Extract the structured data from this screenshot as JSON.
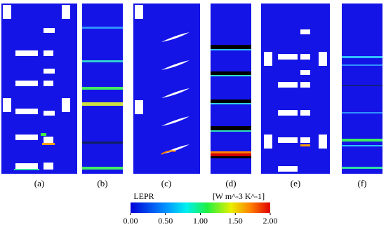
{
  "panels": [
    {
      "label": "(a)"
    },
    {
      "label": "(b)"
    },
    {
      "label": "(c)"
    },
    {
      "label": "(d)"
    },
    {
      "label": "(e)"
    },
    {
      "label": "(f)"
    }
  ],
  "colorbar": {
    "title": "LEPR",
    "unit": "[W m^-3 K^-1]",
    "lim": [
      0,
      2
    ],
    "ticks": [
      {
        "value": 0,
        "label": "0.00"
      },
      {
        "value": 0.5,
        "label": "0.50"
      },
      {
        "value": 1,
        "label": "1.00"
      },
      {
        "value": 1.5,
        "label": "1.50"
      },
      {
        "value": 2,
        "label": "2.00"
      }
    ]
  }
}
